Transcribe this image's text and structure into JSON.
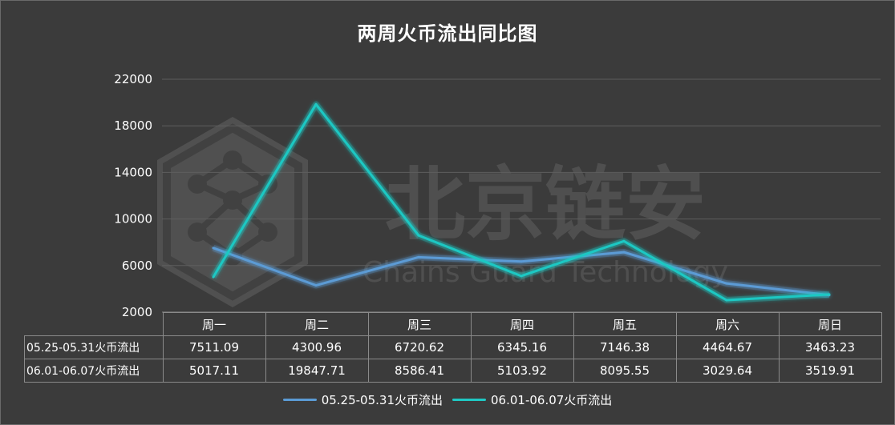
{
  "chart_data": {
    "type": "line",
    "title": "两周火币流出同比图",
    "categories": [
      "周一",
      "周二",
      "周三",
      "周四",
      "周五",
      "周六",
      "周日"
    ],
    "series": [
      {
        "name": "05.25-05.31火币流出",
        "values": [
          7511.09,
          4300.96,
          6720.62,
          6345.16,
          7146.38,
          4464.67,
          3463.23
        ],
        "labels": [
          "7511.09",
          "4300.96",
          "6720.62",
          "6345.16",
          "7146.38",
          "4464.67",
          "3463.23"
        ],
        "color": "#5b9bd5"
      },
      {
        "name": "06.01-06.07火币流出",
        "values": [
          5017.11,
          19847.71,
          8586.41,
          5103.92,
          8095.55,
          3029.64,
          3519.91
        ],
        "labels": [
          "5017.11",
          "19847.71",
          "8586.41",
          "5103.92",
          "8095.55",
          "3029.64",
          "3519.91"
        ],
        "color": "#1fc8c3"
      }
    ],
    "y_ticks": [
      "22000",
      "18000",
      "14000",
      "10000",
      "6000",
      "2000"
    ],
    "ylim": [
      2000,
      22000
    ],
    "grid": true,
    "legend_position": "bottom",
    "data_table": true
  },
  "watermark": {
    "cn": "北京链安",
    "en": "Chains Guard Technology"
  },
  "colors": {
    "background": "#3b3b3b",
    "gridline": "#5e5e5e",
    "text": "#ffffff"
  }
}
